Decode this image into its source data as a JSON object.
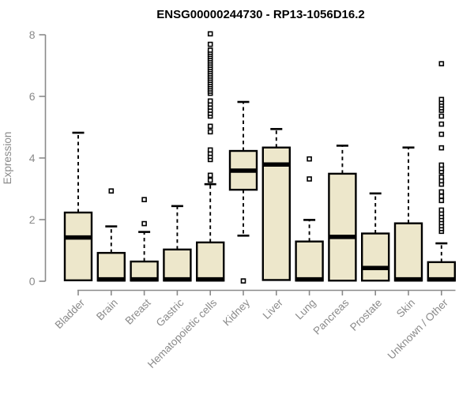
{
  "chart_data": {
    "type": "boxplot",
    "title": "ENSG00000244730 - RP13-1056D16.2",
    "xlabel": "",
    "ylabel": "Expression",
    "ylim": [
      0,
      8.3
    ],
    "y_ticks": [
      0,
      2,
      4,
      6,
      8
    ],
    "grid": "off",
    "legend": "none",
    "categories": [
      "Bladder",
      "Brain",
      "Breast",
      "Gastric",
      "Hematopoietic cells",
      "Kidney",
      "Liver",
      "Lung",
      "Pancreas",
      "Prostate",
      "Skin",
      "Unknown / Other"
    ],
    "series": [
      {
        "category": "Bladder",
        "whisker_low": 0.03,
        "q1": 0.03,
        "median": 1.42,
        "q3": 2.23,
        "whisker_high": 4.82,
        "outliers": []
      },
      {
        "category": "Brain",
        "whisker_low": 0.02,
        "q1": 0.02,
        "median": 0.06,
        "q3": 0.92,
        "whisker_high": 1.78,
        "outliers": [
          2.93
        ]
      },
      {
        "category": "Breast",
        "whisker_low": 0.02,
        "q1": 0.02,
        "median": 0.06,
        "q3": 0.64,
        "whisker_high": 1.6,
        "outliers": [
          1.87,
          2.65
        ]
      },
      {
        "category": "Gastric",
        "whisker_low": 0.02,
        "q1": 0.02,
        "median": 0.06,
        "q3": 1.03,
        "whisker_high": 2.44,
        "outliers": []
      },
      {
        "category": "Hematopoietic cells",
        "whisker_low": 0.02,
        "q1": 0.02,
        "median": 0.06,
        "q3": 1.26,
        "whisker_high": 3.15,
        "outliers": [
          3.28,
          3.44,
          3.95,
          4.05,
          4.15,
          4.26,
          4.85,
          5.03,
          5.36,
          5.45,
          5.55,
          5.65,
          5.75,
          5.85,
          6.1,
          6.17,
          6.24,
          6.31,
          6.38,
          6.45,
          6.52,
          6.59,
          6.66,
          6.73,
          6.8,
          6.87,
          6.94,
          7.01,
          7.08,
          7.15,
          7.22,
          7.29,
          7.36,
          7.43,
          7.5,
          7.69,
          8.03
        ]
      },
      {
        "category": "Kidney",
        "whisker_low": 1.48,
        "q1": 2.97,
        "median": 3.59,
        "q3": 4.23,
        "whisker_high": 5.82,
        "outliers": [
          0.01
        ]
      },
      {
        "category": "Liver",
        "whisker_low": 0.04,
        "q1": 0.04,
        "median": 3.79,
        "q3": 4.34,
        "whisker_high": 4.94,
        "outliers": []
      },
      {
        "category": "Lung",
        "whisker_low": 0.02,
        "q1": 0.02,
        "median": 0.06,
        "q3": 1.29,
        "whisker_high": 1.99,
        "outliers": [
          3.32,
          3.97
        ]
      },
      {
        "category": "Pancreas",
        "whisker_low": 0.02,
        "q1": 0.02,
        "median": 1.44,
        "q3": 3.49,
        "whisker_high": 4.4,
        "outliers": []
      },
      {
        "category": "Prostate",
        "whisker_low": 0.02,
        "q1": 0.02,
        "median": 0.43,
        "q3": 1.55,
        "whisker_high": 2.85,
        "outliers": []
      },
      {
        "category": "Skin",
        "whisker_low": 0.02,
        "q1": 0.02,
        "median": 0.06,
        "q3": 1.88,
        "whisker_high": 4.34,
        "outliers": []
      },
      {
        "category": "Unknown / Other",
        "whisker_low": 0.02,
        "q1": 0.02,
        "median": 0.06,
        "q3": 0.62,
        "whisker_high": 1.23,
        "outliers": [
          1.62,
          1.71,
          1.8,
          1.9,
          2.0,
          2.1,
          2.2,
          2.31,
          2.62,
          2.76,
          2.9,
          3.15,
          3.26,
          3.38,
          3.56,
          3.66,
          3.77,
          4.33,
          4.77,
          5.1,
          5.36,
          5.55,
          5.63,
          5.72,
          5.81,
          5.9,
          7.06
        ]
      }
    ],
    "colors": {
      "box_fill": "#EDE7CB",
      "box_border": "#000000",
      "median": "#000000",
      "whisker": "#000000",
      "axis": "#8A8A8A",
      "tick_text": "#8A8A8A",
      "title_text": "#000000",
      "outlier_fill": "#FFFFFF",
      "background": "#FFFFFF"
    }
  }
}
